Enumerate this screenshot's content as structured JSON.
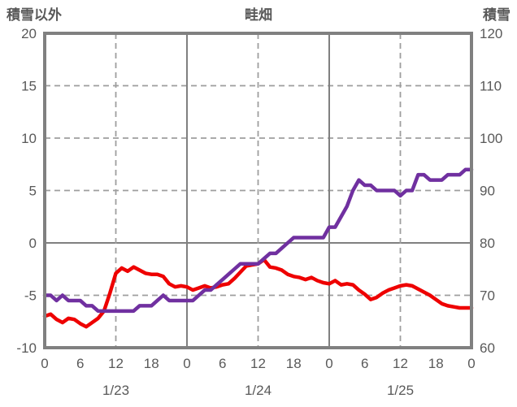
{
  "header": {
    "left_axis_title": "積雪以外",
    "chart_title": "畦畑",
    "right_axis_title": "積雪"
  },
  "colors": {
    "red_line": "#ee0000",
    "purple_line": "#7030a0",
    "frame": "#808080",
    "solid_grid": "#808080",
    "dashed_grid": "#9e9e9e",
    "text": "#595959",
    "background": "#ffffff"
  },
  "chart_data": {
    "type": "line",
    "title": "畦畑",
    "x_axis": {
      "unit": "hour",
      "range_hours": [
        0,
        72
      ],
      "tick_hours": [
        0,
        6,
        12,
        18,
        24,
        30,
        36,
        42,
        48,
        54,
        60,
        66,
        72
      ],
      "tick_labels": [
        "0",
        "6",
        "12",
        "18",
        "0",
        "6",
        "12",
        "18",
        "0",
        "6",
        "12",
        "18",
        "0"
      ],
      "date_labels": [
        {
          "label": "1/23",
          "hour": 12
        },
        {
          "label": "1/24",
          "hour": 36
        },
        {
          "label": "1/25",
          "hour": 60
        }
      ]
    },
    "left_axis": {
      "title": "積雪以外",
      "min": -10,
      "max": 20,
      "tick_interval": 5,
      "ticks": [
        20,
        15,
        10,
        5,
        0,
        -5,
        -10
      ]
    },
    "right_axis": {
      "title": "積雪",
      "min": 60,
      "max": 120,
      "tick_interval": 10,
      "ticks": [
        120,
        110,
        100,
        90,
        80,
        70,
        60
      ]
    },
    "gridlines": {
      "horizontal_dashed_left_values": [
        15,
        10,
        5,
        -5
      ],
      "horizontal_solid_left_values": [
        0
      ],
      "vertical_dashed_hours": [
        12,
        36,
        60
      ],
      "vertical_solid_hours": [
        24,
        48
      ]
    },
    "series": [
      {
        "name": "red-left-axis-series",
        "axis": "left",
        "color": "#ee0000",
        "values": [
          -7.0,
          -6.8,
          -7.3,
          -7.6,
          -7.2,
          -7.3,
          -7.7,
          -8.0,
          -7.6,
          -7.2,
          -6.5,
          -4.8,
          -2.9,
          -2.4,
          -2.7,
          -2.3,
          -2.6,
          -2.9,
          -3.0,
          -3.0,
          -3.2,
          -3.9,
          -4.2,
          -4.1,
          -4.2,
          -4.5,
          -4.3,
          -4.1,
          -4.3,
          -4.2,
          -4.0,
          -3.9,
          -3.4,
          -2.8,
          -2.2,
          -2.1,
          -2.0,
          -1.6,
          -2.3,
          -2.4,
          -2.6,
          -3.0,
          -3.2,
          -3.3,
          -3.5,
          -3.3,
          -3.6,
          -3.8,
          -3.9,
          -3.6,
          -4.0,
          -3.9,
          -4.0,
          -4.5,
          -4.9,
          -5.4,
          -5.2,
          -4.8,
          -4.5,
          -4.3,
          -4.1,
          -4.0,
          -4.1,
          -4.4,
          -4.7,
          -5.0,
          -5.4,
          -5.8,
          -6.0,
          -6.1,
          -6.2,
          -6.2,
          -6.2
        ]
      },
      {
        "name": "purple-snow-depth-series",
        "axis": "right",
        "color": "#7030a0",
        "values": [
          70,
          70,
          69,
          70,
          69,
          69,
          69,
          68,
          68,
          67,
          67,
          67,
          67,
          67,
          67,
          67,
          68,
          68,
          68,
          69,
          70,
          69,
          69,
          69,
          69,
          69,
          70,
          71,
          71,
          72,
          73,
          74,
          75,
          76,
          76,
          76,
          76,
          77,
          78,
          78,
          79,
          80,
          81,
          81,
          81,
          81,
          81,
          81,
          83,
          83,
          85,
          87,
          90,
          92,
          91,
          91,
          90,
          90,
          90,
          90,
          89,
          90,
          90,
          93,
          93,
          92,
          92,
          92,
          93,
          93,
          93,
          94,
          94
        ]
      }
    ]
  }
}
